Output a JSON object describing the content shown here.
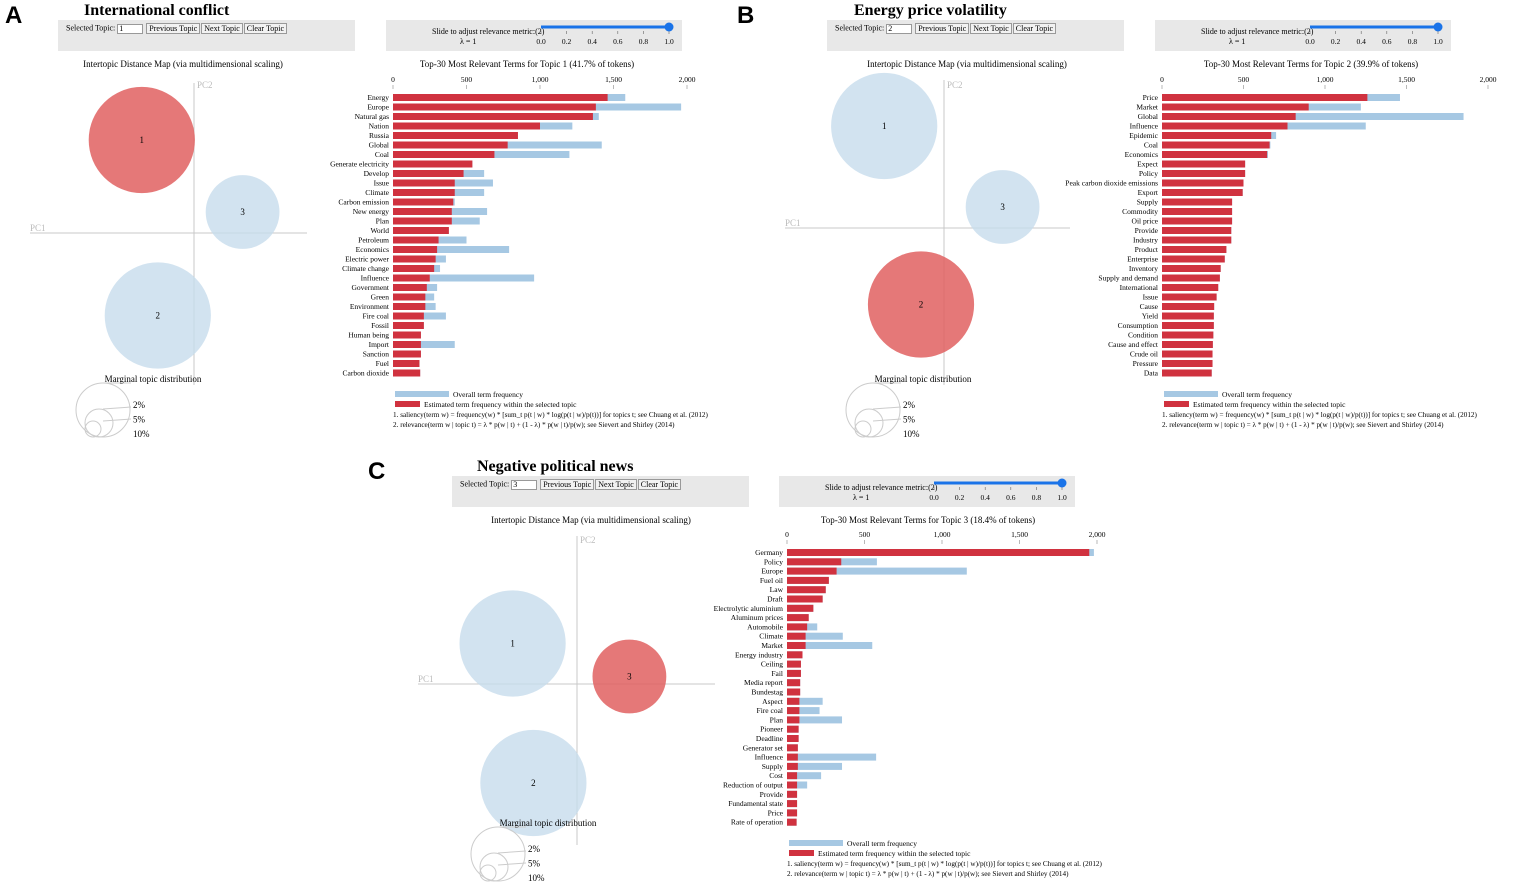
{
  "common": {
    "selected_topic_label": "Selected Topic:",
    "prev_label": "Previous Topic",
    "next_label": "Next Topic",
    "clear_label": "Clear Topic",
    "slider_label": "Slide to adjust relevance metric:(2)",
    "lambda_text": "λ = 1",
    "slider_ticks": [
      "0.0",
      "0.2",
      "0.4",
      "0.6",
      "0.8",
      "1.0"
    ],
    "idm_title": "Intertopic Distance Map (via multidimensional scaling)",
    "pc1": "PC1",
    "pc2": "PC2",
    "marginal_title": "Marginal topic distribution",
    "marginal_labels": [
      "2%",
      "5%",
      "10%"
    ],
    "legend_overall": "Overall term frequency",
    "legend_estimated": "Estimated term frequency within the selected topic",
    "note1": "1. saliency(term w) = frequency(w) * [sum_t p(t | w) * log(p(t | w)/p(t))] for topics t; see Chuang et al. (2012)",
    "note2": "2. relevance(term w | topic t) = λ * p(w | t) + (1 - λ) * p(w | t)/p(w); see Sievert and Shirley (2014)",
    "colors": {
      "overall": "#a6c8e3",
      "estimated": "#d0323f",
      "bubble": "#c7dcec",
      "bubble_selected": "#e06060"
    }
  },
  "chart_data": [
    {
      "type": "bar",
      "panel": "A",
      "panel_title": "International conflict",
      "selected_topic": "1",
      "lambda": 1.0,
      "chart_title": "Top-30 Most Relevant Terms for Topic 1 (41.7% of tokens)",
      "xlim": [
        0,
        2000
      ],
      "ticks": [
        0,
        500,
        1000,
        1500,
        2000
      ],
      "tick_labels": [
        "0",
        "500",
        "1,000",
        "1,500",
        "2,000"
      ],
      "terms": [
        "Energy",
        "Europe",
        "Natural gas",
        "Nation",
        "Russia",
        "Global",
        "Coal",
        "Generate electricity",
        "Develop",
        "Issue",
        "Climate",
        "Carbon emission",
        "New energy",
        "Plan",
        "World",
        "Petroleum",
        "Economics",
        "Electric power",
        "Climate change",
        "Influence",
        "Government",
        "Green",
        "Environment",
        "Fire coal",
        "Fossil",
        "Human being",
        "Import",
        "Sanction",
        "Fuel",
        "Carbon dioxide"
      ],
      "overall": [
        1580,
        1960,
        1400,
        1220,
        850,
        1420,
        1200,
        540,
        620,
        680,
        620,
        420,
        640,
        590,
        380,
        500,
        790,
        360,
        320,
        960,
        300,
        280,
        290,
        360,
        210,
        190,
        420,
        190,
        180,
        185
      ],
      "estimated": [
        1460,
        1380,
        1360,
        1000,
        850,
        780,
        690,
        540,
        480,
        420,
        420,
        410,
        400,
        400,
        380,
        310,
        300,
        290,
        280,
        250,
        230,
        220,
        220,
        210,
        210,
        190,
        190,
        190,
        180,
        185
      ],
      "topics": [
        {
          "id": "1",
          "x": -0.32,
          "y": 0.62,
          "r": 0.118,
          "selected": true
        },
        {
          "id": "2",
          "x": -0.22,
          "y": -0.55,
          "r": 0.118,
          "selected": false
        },
        {
          "id": "3",
          "x": 0.31,
          "y": 0.14,
          "r": 0.082,
          "selected": false
        }
      ]
    },
    {
      "type": "bar",
      "panel": "B",
      "panel_title": "Energy price volatility",
      "selected_topic": "2",
      "lambda": 1.0,
      "chart_title": "Top-30 Most Relevant Terms for Topic 2 (39.9% of tokens)",
      "xlim": [
        0,
        2000
      ],
      "ticks": [
        0,
        500,
        1000,
        1500,
        2000
      ],
      "tick_labels": [
        "0",
        "500",
        "1,000",
        "1,500",
        "2,000"
      ],
      "terms": [
        "Price",
        "Market",
        "Global",
        "Influence",
        "Epidemic",
        "Coal",
        "Economics",
        "Expect",
        "Policy",
        "Peak carbon dioxide emissions",
        "Export",
        "Supply",
        "Commodity",
        "Oil price",
        "Provide",
        "Industry",
        "Product",
        "Enterprise",
        "Inventory",
        "Supply and demand",
        "International",
        "Issue",
        "Cause",
        "Yield",
        "Consumption",
        "Condition",
        "Cause and effect",
        "Crude oil",
        "Pressure",
        "Data"
      ],
      "overall": [
        1460,
        1220,
        1850,
        1250,
        700,
        665,
        650,
        510,
        510,
        500,
        495,
        430,
        430,
        430,
        425,
        425,
        395,
        385,
        360,
        355,
        345,
        335,
        320,
        318,
        318,
        315,
        312,
        310,
        310,
        305
      ],
      "estimated": [
        1260,
        900,
        820,
        770,
        670,
        660,
        645,
        510,
        510,
        500,
        495,
        430,
        430,
        430,
        425,
        425,
        395,
        385,
        360,
        355,
        345,
        335,
        320,
        318,
        318,
        315,
        312,
        310,
        310,
        305
      ],
      "topics": [
        {
          "id": "1",
          "x": -0.38,
          "y": 0.68,
          "r": 0.118,
          "selected": false
        },
        {
          "id": "2",
          "x": -0.15,
          "y": -0.51,
          "r": 0.118,
          "selected": true
        },
        {
          "id": "3",
          "x": 0.36,
          "y": 0.14,
          "r": 0.082,
          "selected": false
        }
      ]
    },
    {
      "type": "bar",
      "panel": "C",
      "panel_title": "Negative political news",
      "selected_topic": "3",
      "lambda": 1.0,
      "chart_title": "Top-30 Most Relevant Terms for Topic 3 (18.4% of tokens)",
      "xlim": [
        0,
        2000
      ],
      "ticks": [
        0,
        500,
        1000,
        1500,
        2000
      ],
      "tick_labels": [
        "0",
        "500",
        "1,000",
        "1,500",
        "2,000"
      ],
      "terms": [
        "Germany",
        "Policy",
        "Europe",
        "Fuel oil",
        "Law",
        "Draft",
        "Electrolytic aluminium",
        "Aluminum prices",
        "Automobile",
        "Climate",
        "Market",
        "Energy industry",
        "Ceiling",
        "Fail",
        "Media report",
        "Bundestag",
        "Aspect",
        "Fire coal",
        "Plan",
        "Pioneer",
        "Deadline",
        "Generator set",
        "Influence",
        "Supply",
        "Cost",
        "Reduction of output",
        "Provide",
        "Fundamental state",
        "Price",
        "Rate of operation"
      ],
      "overall": [
        1980,
        580,
        1160,
        270,
        250,
        230,
        170,
        140,
        195,
        360,
        550,
        100,
        90,
        90,
        85,
        85,
        230,
        210,
        355,
        75,
        75,
        70,
        575,
        355,
        220,
        130,
        65,
        65,
        65,
        62
      ],
      "estimated": [
        1950,
        350,
        320,
        270,
        250,
        230,
        170,
        140,
        130,
        120,
        120,
        100,
        90,
        90,
        85,
        85,
        80,
        80,
        80,
        75,
        75,
        70,
        70,
        70,
        65,
        65,
        65,
        65,
        65,
        62
      ],
      "topics": [
        {
          "id": "1",
          "x": -0.39,
          "y": 0.27,
          "r": 0.118,
          "selected": false
        },
        {
          "id": "2",
          "x": -0.26,
          "y": -0.66,
          "r": 0.118,
          "selected": false
        },
        {
          "id": "3",
          "x": 0.34,
          "y": 0.05,
          "r": 0.082,
          "selected": true
        }
      ]
    }
  ]
}
